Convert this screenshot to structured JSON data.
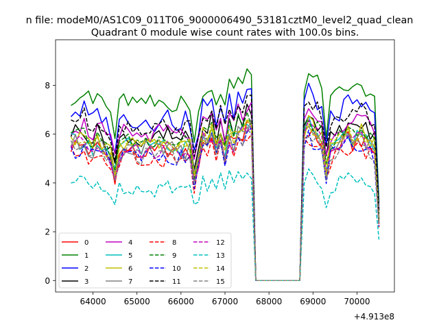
{
  "figure": {
    "suptitle": "n file: modeM0/AS1C09_011T06_9000006490_53181cztM0_level2_quad_clean",
    "offset_label": "+4.913e8"
  },
  "chart_data": {
    "type": "line",
    "title": "Quadrant 0 module wise count rates with 100.0s bins.",
    "xlabel": "",
    "ylabel": "",
    "x_offset": 491300000,
    "x_start": 63500,
    "x_step": 100,
    "x_count": 71,
    "xlim": [
      63150,
      70850
    ],
    "ylim": [
      -0.47,
      9.87
    ],
    "xticks": [
      64000,
      65000,
      66000,
      67000,
      68000,
      69000,
      70000
    ],
    "xtick_labels": [
      "64000",
      "65000",
      "66000",
      "67000",
      "68000",
      "69000",
      "70000"
    ],
    "yticks": [
      0,
      2,
      4,
      6,
      8
    ],
    "ytick_labels": [
      "0",
      "2",
      "4",
      "6",
      "8"
    ],
    "grid": false,
    "legend": {
      "placement": "lower-left",
      "columns": 4
    },
    "series": [
      {
        "name": "0",
        "color": "#ff0000",
        "dash": "solid",
        "base": 5.5,
        "amp": 0.35
      },
      {
        "name": "1",
        "color": "#008000",
        "dash": "solid",
        "base": 7.6,
        "amp": 0.45
      },
      {
        "name": "2",
        "color": "#0000ff",
        "dash": "solid",
        "base": 6.9,
        "amp": 0.4
      },
      {
        "name": "3",
        "color": "#000000",
        "dash": "solid",
        "base": 6.1,
        "amp": 0.35
      },
      {
        "name": "4",
        "color": "#bf00bf",
        "dash": "solid",
        "base": 6.3,
        "amp": 0.35
      },
      {
        "name": "5",
        "color": "#00bfbf",
        "dash": "solid",
        "base": 5.7,
        "amp": 0.35
      },
      {
        "name": "6",
        "color": "#bfbf00",
        "dash": "solid",
        "base": 5.8,
        "amp": 0.35
      },
      {
        "name": "7",
        "color": "#808080",
        "dash": "solid",
        "base": 5.6,
        "amp": 0.35
      },
      {
        "name": "8",
        "color": "#ff0000",
        "dash": "dashed",
        "base": 5.2,
        "amp": 0.35
      },
      {
        "name": "9",
        "color": "#008000",
        "dash": "dashed",
        "base": 5.9,
        "amp": 0.35
      },
      {
        "name": "10",
        "color": "#0000ff",
        "dash": "dashed",
        "base": 5.3,
        "amp": 0.35
      },
      {
        "name": "11",
        "color": "#000000",
        "dash": "dashed",
        "base": 6.6,
        "amp": 0.35
      },
      {
        "name": "12",
        "color": "#bf00bf",
        "dash": "dashed",
        "base": 5.6,
        "amp": 0.35
      },
      {
        "name": "13",
        "color": "#00bfbf",
        "dash": "dashed",
        "base": 4.0,
        "amp": 0.35
      },
      {
        "name": "14",
        "color": "#bfbf00",
        "dash": "dashed",
        "base": 5.8,
        "amp": 0.35
      },
      {
        "name": "15",
        "color": "#808080",
        "dash": "dashed",
        "base": 5.4,
        "amp": 0.35
      }
    ],
    "profile": [
      1.0,
      1.01,
      1.0,
      1.02,
      0.97,
      0.95,
      1.0,
      0.98,
      0.93,
      0.9,
      0.78,
      0.93,
      0.97,
      0.98,
      0.96,
      0.94,
      0.93,
      0.96,
      0.95,
      0.94,
      0.97,
      0.96,
      0.98,
      0.96,
      0.93,
      0.95,
      0.95,
      0.96,
      0.74,
      0.88,
      1.05,
      1.0,
      1.08,
      0.96,
      1.04,
      0.92,
      1.06,
      1.0,
      1.1,
      1.07,
      1.15,
      1.12,
      0.0,
      0.0,
      0.0,
      0.0,
      0.0,
      0.0,
      0.0,
      0.0,
      0.0,
      0.0,
      0.0,
      1.06,
      1.13,
      1.08,
      1.06,
      1.02,
      0.8,
      0.95,
      0.98,
      1.0,
      1.03,
      1.05,
      1.01,
      1.04,
      1.05,
      1.02,
      0.98,
      0.96,
      0.42
    ]
  }
}
